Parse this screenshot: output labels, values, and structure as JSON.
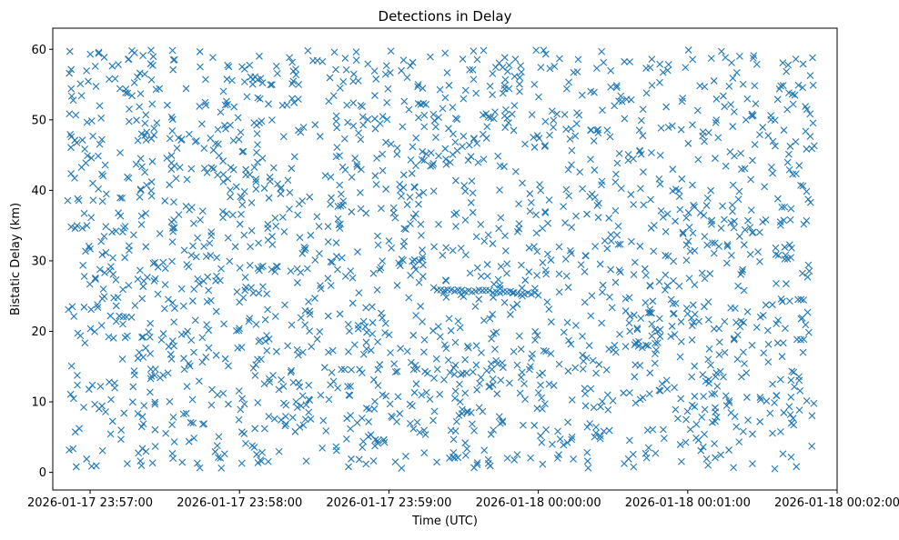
{
  "chart_data": {
    "type": "scatter",
    "title": "Detections in Delay",
    "xlabel": "Time (UTC)",
    "ylabel": "Bistatic Delay (km)",
    "marker": "x",
    "color": "#1f77b4",
    "grid": false,
    "xlim": [
      "2026-01-17 23:56:45",
      "2026-01-18 00:02:00"
    ],
    "ylim": [
      -2.5,
      63
    ],
    "x_ticks": [
      "2026-01-17 23:57:00",
      "2026-01-17 23:58:00",
      "2026-01-17 23:59:00",
      "2026-01-18 00:00:00",
      "2026-01-18 00:01:00",
      "2026-01-18 00:02:00"
    ],
    "y_ticks": [
      0,
      10,
      20,
      30,
      40,
      50,
      60
    ],
    "x_range": [
      "2026-01-17 23:56:51",
      "2026-01-18 00:01:51"
    ],
    "delay_range_km": [
      0.5,
      59.9
    ],
    "points_approx": 2000,
    "structured_tracks": [
      {
        "time_start": "2026-01-17 23:59:18",
        "time_end": "2026-01-18 00:00:00",
        "delay_start_km": 26.0,
        "delay_end_km": 25.3
      }
    ]
  }
}
